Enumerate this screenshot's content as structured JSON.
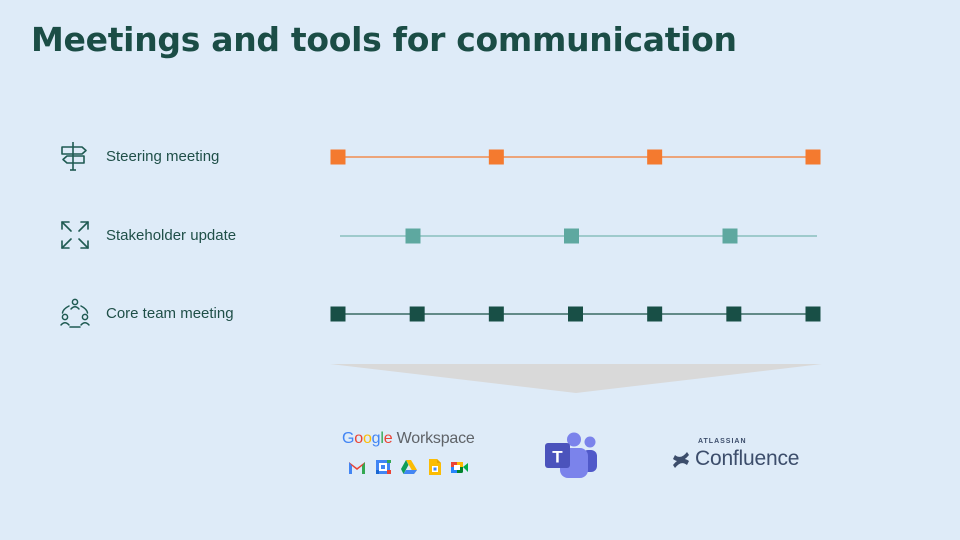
{
  "slide": {
    "title": "Meetings and tools for communication"
  },
  "meetings": [
    {
      "label": "Steering meeting",
      "icon": "signpost-icon",
      "color": "#f47a2f",
      "line_color": "#f47a2f",
      "occurrences": 4
    },
    {
      "label": "Stakeholder update",
      "icon": "expand-arrows-icon",
      "color": "#5ea8a0",
      "line_color": "#5ea8a0",
      "occurrences": 3
    },
    {
      "label": "Core team meeting",
      "icon": "team-circle-icon",
      "color": "#184f46",
      "line_color": "#184f46",
      "occurrences": 7
    }
  ],
  "tools": {
    "google": {
      "wordmark": "Google",
      "product": "Workspace",
      "apps": [
        "gmail-icon",
        "calendar-icon",
        "drive-icon",
        "docs-icon",
        "meet-icon"
      ]
    },
    "teams": {
      "name": "Microsoft Teams",
      "letter": "T"
    },
    "confluence": {
      "vendor": "ATLASSIAN",
      "name": "Confluence"
    }
  },
  "colors": {
    "background": "#deebf8",
    "title": "#1b4d46",
    "funnel": "#d9d9d9"
  }
}
